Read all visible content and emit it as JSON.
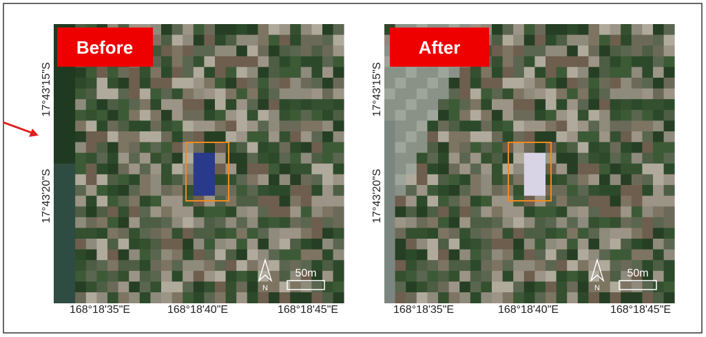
{
  "panels": [
    {
      "label": "Before",
      "lat_labels": [
        "17°43'15\"S",
        "17°43'20\"S"
      ],
      "lon_labels": [
        "168°18'35\"E",
        "168°18'40\"E",
        "168°18'45\"E"
      ],
      "scale": "50m",
      "north": "N"
    },
    {
      "label": "After",
      "lat_labels": [
        "17°43'15\"S",
        "17°43'20\"S"
      ],
      "lon_labels": [
        "168°18'35\"E",
        "168°18'40\"E",
        "168°18'45\"E"
      ],
      "scale": "50m",
      "north": "N"
    }
  ]
}
